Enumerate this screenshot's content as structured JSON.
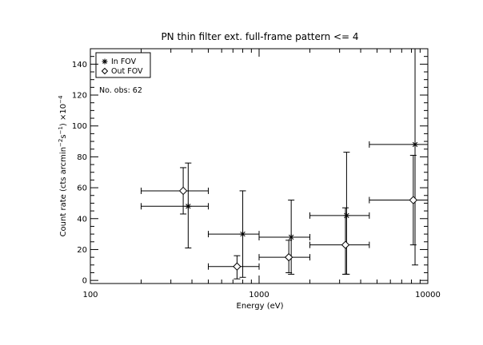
{
  "chart_data": {
    "type": "scatter",
    "title": "PN thin filter ext. full-frame pattern <= 4",
    "xlabel": "Energy (eV)",
    "ylabel": {
      "prefix": "Count rate (cts arcmin",
      "exp1": "−2",
      "mid": "s",
      "exp2": "−1",
      "suffix": ") ×10",
      "exp3": "−4"
    },
    "x_scale": "log",
    "xlim": [
      100,
      10000
    ],
    "ylim": [
      -2,
      150
    ],
    "x_ticks": [
      {
        "value": 100,
        "label": "100"
      },
      {
        "value": 1000,
        "label": "1000"
      },
      {
        "value": 10000,
        "label": "10000"
      }
    ],
    "y_ticks": [
      {
        "value": 0,
        "label": "0"
      },
      {
        "value": 20,
        "label": "20"
      },
      {
        "value": 40,
        "label": "40"
      },
      {
        "value": 60,
        "label": "60"
      },
      {
        "value": 80,
        "label": "80"
      },
      {
        "value": 100,
        "label": "100"
      },
      {
        "value": 120,
        "label": "120"
      },
      {
        "value": 140,
        "label": "140"
      }
    ],
    "legend": {
      "position": "top-left",
      "entries": [
        {
          "label": "In FOV",
          "marker": "asterisk"
        },
        {
          "label": "Out FOV",
          "marker": "diamond"
        }
      ]
    },
    "annotations": [
      "No. obs: 62"
    ],
    "series": [
      {
        "name": "In FOV",
        "marker": "asterisk",
        "points": [
          {
            "x": 380,
            "y": 48,
            "xerr": [
              200,
              500
            ],
            "yerr": [
              21,
              76
            ]
          },
          {
            "x": 800,
            "y": 30,
            "xerr": [
              500,
              1000
            ],
            "yerr": [
              2,
              58
            ]
          },
          {
            "x": 1550,
            "y": 28,
            "xerr": [
              1000,
              2000
            ],
            "yerr": [
              4,
              52
            ]
          },
          {
            "x": 3300,
            "y": 42,
            "xerr": [
              2000,
              4500
            ],
            "yerr": [
              4,
              83
            ]
          },
          {
            "x": 8400,
            "y": 88,
            "xerr": [
              4500,
              10000
            ],
            "yerr": [
              10,
              150
            ]
          }
        ]
      },
      {
        "name": "Out FOV",
        "marker": "diamond",
        "points": [
          {
            "x": 355,
            "y": 58,
            "xerr": [
              200,
              500
            ],
            "yerr": [
              43,
              73
            ]
          },
          {
            "x": 740,
            "y": 9,
            "xerr": [
              500,
              1000
            ],
            "yerr": [
              1,
              16
            ]
          },
          {
            "x": 1500,
            "y": 15,
            "xerr": [
              1000,
              2000
            ],
            "yerr": [
              5,
              26
            ]
          },
          {
            "x": 3250,
            "y": 23,
            "xerr": [
              2000,
              4500
            ],
            "yerr": [
              4,
              47
            ]
          },
          {
            "x": 8200,
            "y": 52,
            "xerr": [
              4500,
              10000
            ],
            "yerr": [
              23,
              81
            ]
          }
        ]
      }
    ]
  }
}
